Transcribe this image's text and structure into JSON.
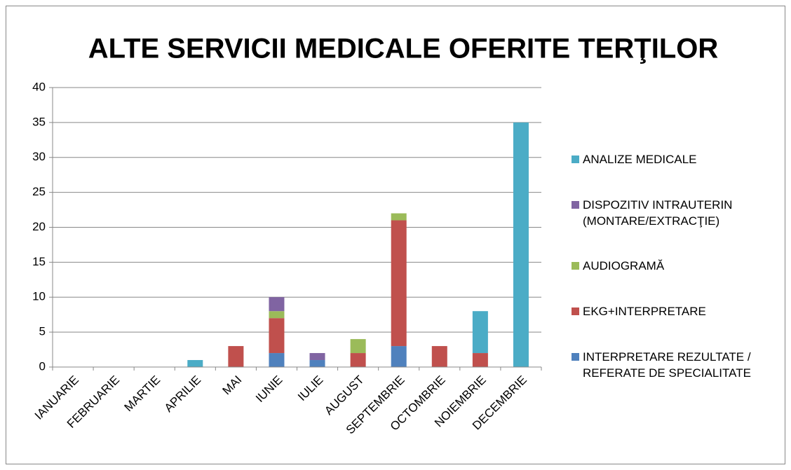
{
  "chart_data": {
    "type": "bar",
    "stacked": true,
    "title": "ALTE SERVICII MEDICALE OFERITE TERŢILOR",
    "categories": [
      "IANUARIE",
      "FEBRUARIE",
      "MARTIE",
      "APRILIE",
      "MAI",
      "IUNIE",
      "IULIE",
      "AUGUST",
      "SEPTEMBRIE",
      "OCTOMBRIE",
      "NOIEMBRIE",
      "DECEMBRIE"
    ],
    "series": [
      {
        "name": "INTERPRETARE REZULTATE / REFERATE DE SPECIALITATE",
        "color": "#4f81bd",
        "values": [
          0,
          0,
          0,
          0,
          0,
          2,
          1,
          0,
          3,
          0,
          0,
          0
        ]
      },
      {
        "name": "EKG+INTERPRETARE",
        "color": "#c0504d",
        "values": [
          0,
          0,
          0,
          0,
          3,
          5,
          0,
          2,
          18,
          3,
          2,
          0
        ]
      },
      {
        "name": "AUDIOGRAMĂ",
        "color": "#9bbb59",
        "values": [
          0,
          0,
          0,
          0,
          0,
          1,
          0,
          2,
          1,
          0,
          0,
          0
        ]
      },
      {
        "name": "DISPOZITIV INTRAUTERIN (MONTARE/EXTRACŢIE)",
        "color": "#8064a2",
        "values": [
          0,
          0,
          0,
          0,
          0,
          2,
          1,
          0,
          0,
          0,
          0,
          0
        ]
      },
      {
        "name": "ANALIZE MEDICALE",
        "color": "#4bacc6",
        "values": [
          0,
          0,
          0,
          1,
          0,
          0,
          0,
          0,
          0,
          0,
          6,
          35
        ]
      }
    ],
    "ylim": [
      0,
      40
    ],
    "yticks": [
      0,
      5,
      10,
      15,
      20,
      25,
      30,
      35,
      40
    ],
    "grid": true,
    "legend": "right"
  }
}
